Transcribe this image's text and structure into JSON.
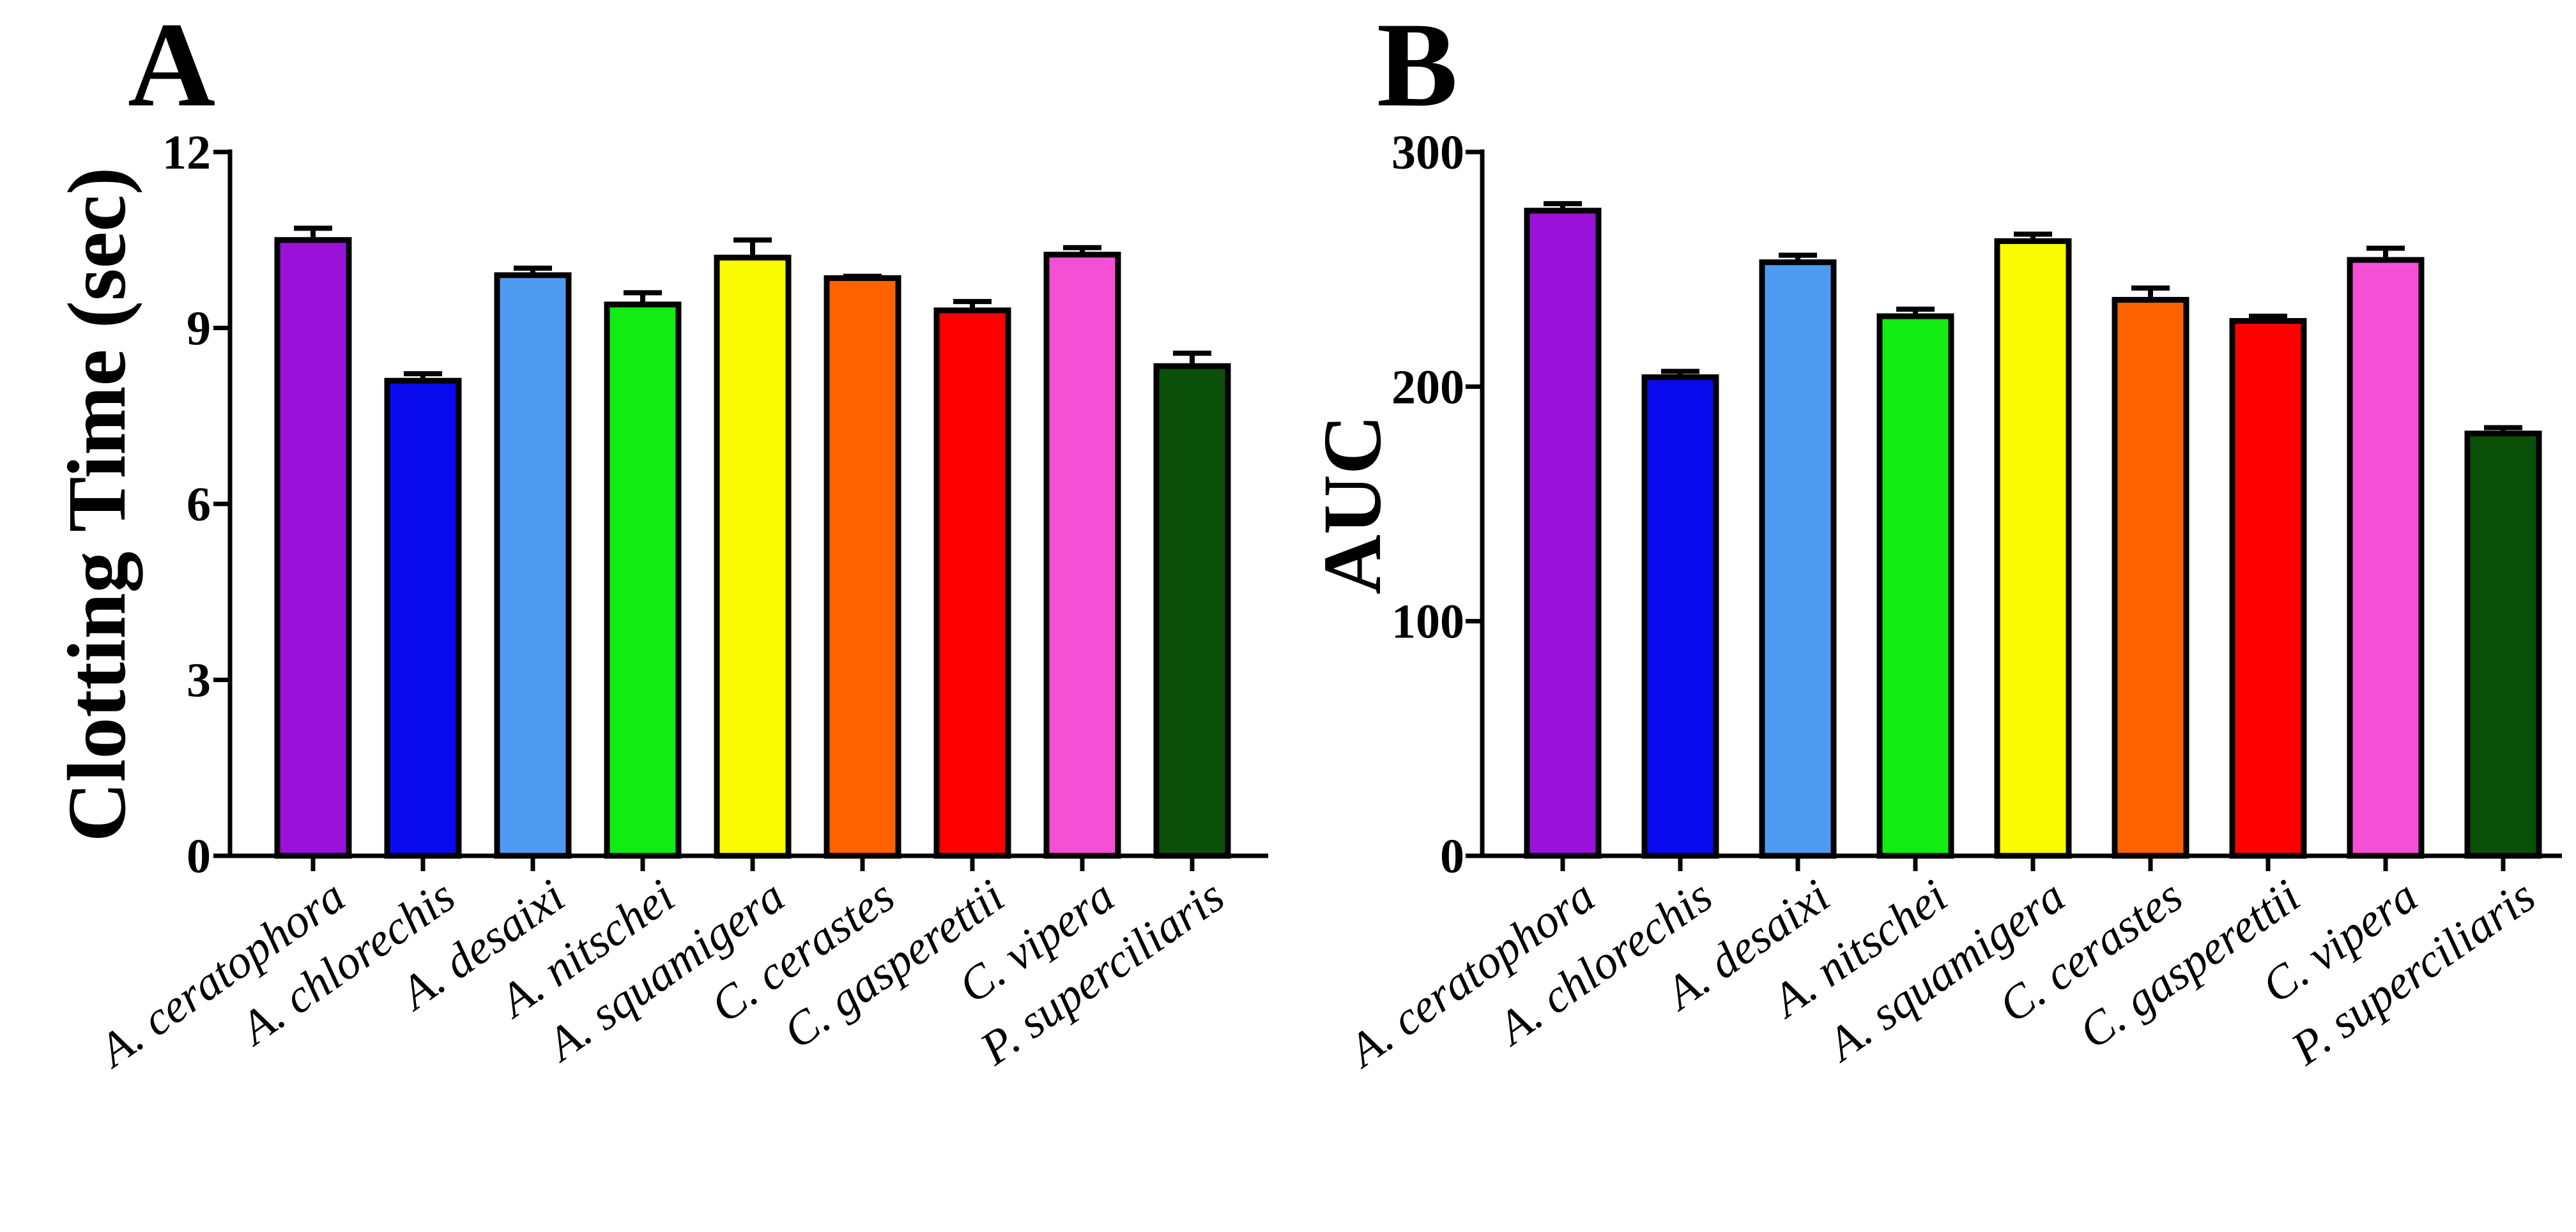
{
  "chart_data": [
    {
      "panel_label": "A",
      "type": "bar",
      "title": "",
      "xlabel": "",
      "ylabel": "Clotting Time (sec)",
      "ylim": [
        0,
        12
      ],
      "yticks": [
        "0",
        "3",
        "6",
        "9",
        "12"
      ],
      "grid": false,
      "categories": [
        "A. ceratophora",
        "A. chlorechis",
        "A. desaixi",
        "A. nitschei",
        "A. squamigera",
        "C. cerastes",
        "C. gasperettii",
        "C. vipera",
        "P. superciliaris"
      ],
      "values": [
        10.5,
        8.1,
        9.9,
        9.4,
        10.2,
        9.85,
        9.3,
        10.25,
        8.35
      ],
      "errors": [
        0.2,
        0.12,
        0.12,
        0.2,
        0.3,
        0.03,
        0.15,
        0.12,
        0.22
      ],
      "colors": [
        "#9a12d9",
        "#0a0aee",
        "#4f9bf2",
        "#13ec13",
        "#fbfb00",
        "#ff6200",
        "#ff0000",
        "#f54fd6",
        "#0a5008"
      ]
    },
    {
      "panel_label": "B",
      "type": "bar",
      "title": "",
      "xlabel": "",
      "ylabel": "AUC",
      "ylim": [
        0,
        300
      ],
      "yticks": [
        "0",
        "100",
        "200",
        "300"
      ],
      "grid": false,
      "categories": [
        "A. ceratophora",
        "A. chlorechis",
        "A. desaixi",
        "A. nitschei",
        "A. squamigera",
        "C. cerastes",
        "C. gasperettii",
        "C. vipera",
        "P. superciliaris"
      ],
      "values": [
        275,
        204,
        253,
        230,
        262,
        237,
        228,
        254,
        180
      ],
      "errors": [
        3,
        2.5,
        3,
        3,
        3,
        5,
        2,
        5,
        2.5
      ],
      "colors": [
        "#9a12d9",
        "#0a0aee",
        "#4f9bf2",
        "#13ec13",
        "#fbfb00",
        "#ff6200",
        "#ff0000",
        "#f54fd6",
        "#0a5008"
      ]
    }
  ]
}
